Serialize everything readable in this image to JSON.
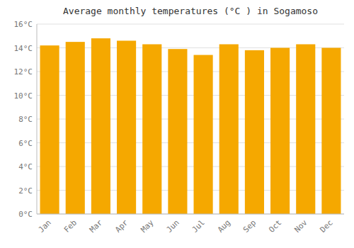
{
  "chart_data": {
    "type": "bar",
    "title": "Average monthly temperatures (°C ) in Sogamoso",
    "categories": [
      "Jan",
      "Feb",
      "Mar",
      "Apr",
      "May",
      "Jun",
      "Jul",
      "Aug",
      "Sep",
      "Oct",
      "Nov",
      "Dec"
    ],
    "values": [
      14.2,
      14.5,
      14.8,
      14.6,
      14.3,
      13.9,
      13.4,
      14.3,
      13.8,
      14.0,
      14.3,
      14.0
    ],
    "color": "#F5A800",
    "ylim": [
      0,
      16
    ],
    "yticks": [
      {
        "value": 0,
        "label": "0°C"
      },
      {
        "value": 2,
        "label": "2°C"
      },
      {
        "value": 4,
        "label": "4°C"
      },
      {
        "value": 6,
        "label": "6°C"
      },
      {
        "value": 8,
        "label": "8°C"
      },
      {
        "value": 10,
        "label": "10°C"
      },
      {
        "value": 12,
        "label": "12°C"
      },
      {
        "value": 14,
        "label": "14°C"
      },
      {
        "value": 16,
        "label": "16°C"
      }
    ],
    "grid": true
  }
}
